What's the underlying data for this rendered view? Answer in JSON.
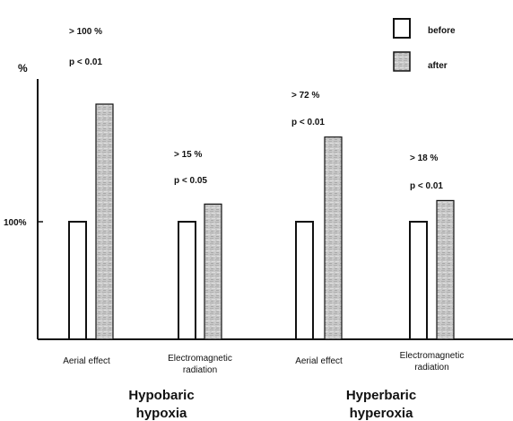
{
  "chart_data": {
    "type": "bar",
    "ylabel": "%",
    "reference_tick": "100%",
    "reference_value": 100,
    "legend": {
      "placement": "top-right",
      "items": [
        {
          "label": "before",
          "style": "white",
          "color": "#ffffff"
        },
        {
          "label": "after",
          "style": "gray-texture",
          "color": "#c8c8c8"
        }
      ]
    },
    "series": [
      {
        "name": "before",
        "values": [
          100,
          100,
          100,
          100
        ]
      },
      {
        "name": "after",
        "values": [
          200,
          115,
          172,
          118
        ]
      }
    ],
    "categories": [
      "Aerial effect",
      "Electromagnetic radiation",
      "Aerial effect",
      "Electromagnetic radiation"
    ],
    "groups": [
      {
        "label": "Hypobaric hypoxia",
        "categories": [
          0,
          1
        ]
      },
      {
        "label": "Hyperbaric hyperoxia",
        "categories": [
          2,
          3
        ]
      }
    ],
    "annotations": [
      {
        "category": 0,
        "change": "> 100 %",
        "p": "p < 0.01"
      },
      {
        "category": 1,
        "change": "> 15 %",
        "p": "p < 0.05"
      },
      {
        "category": 2,
        "change": "> 72 %",
        "p": "p < 0.01"
      },
      {
        "category": 3,
        "change": "> 18 %",
        "p": "p < 0.01"
      }
    ]
  }
}
